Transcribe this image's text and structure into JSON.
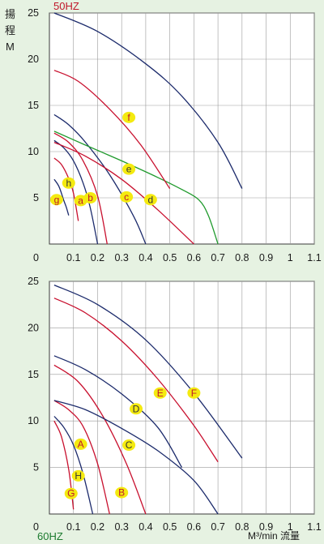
{
  "labels": {
    "y_char1": "揚",
    "y_char2": "程",
    "y_unit": "M",
    "x_label": "M³/min 流量",
    "origin": "0"
  },
  "colors": {
    "navy": "#1b2a6b",
    "red": "#c8102e",
    "green": "#1f9a2c",
    "badge": "#f4ea10",
    "badge_text_red": "#c0182a",
    "badge_text_dark": "#333333",
    "grid": "#9a9a9a",
    "plot_bg": "#ffffff"
  },
  "chart_data": [
    {
      "type": "line",
      "title": "50HZ",
      "xlim": [
        0,
        1.1
      ],
      "ylim": [
        0,
        25
      ],
      "xticks": [
        "0.1",
        "0.2",
        "0.3",
        "0.4",
        "0.5",
        "0.6",
        "0.7",
        "0.8",
        "0.9",
        "1",
        "1.1"
      ],
      "yticks": [
        "5",
        "10",
        "15",
        "20",
        "25"
      ],
      "grid": true,
      "series": [
        {
          "name": "g",
          "color": "navy",
          "x": [
            0.02,
            0.04,
            0.06,
            0.07,
            0.08
          ],
          "y": [
            7,
            6.2,
            4.7,
            4,
            3.1
          ],
          "badge": [
            0.03,
            4.8
          ],
          "badge_text": "red"
        },
        {
          "name": "h",
          "color": "red",
          "x": [
            0.02,
            0.05,
            0.08,
            0.1,
            0.12
          ],
          "y": [
            9.3,
            8.6,
            7.1,
            5.5,
            2.5
          ],
          "badge": [
            0.08,
            6.6
          ],
          "badge_text": "dark"
        },
        {
          "name": "a",
          "color": "navy",
          "x": [
            0.02,
            0.06,
            0.1,
            0.14,
            0.17,
            0.2
          ],
          "y": [
            11.2,
            10.4,
            9,
            6.6,
            3.9,
            0
          ],
          "badge": [
            0.13,
            4.7
          ],
          "badge_text": "red"
        },
        {
          "name": "b",
          "color": "red",
          "x": [
            0.02,
            0.08,
            0.14,
            0.2,
            0.24
          ],
          "y": [
            12,
            11,
            9,
            5.2,
            0
          ],
          "badge": [
            0.17,
            5
          ],
          "badge_text": "red"
        },
        {
          "name": "c",
          "color": "navy",
          "x": [
            0.02,
            0.08,
            0.15,
            0.25,
            0.35,
            0.4
          ],
          "y": [
            14,
            12.9,
            11,
            7.5,
            3,
            0
          ],
          "badge": [
            0.32,
            5.1
          ],
          "badge_text": "red"
        },
        {
          "name": "d",
          "color": "red",
          "x": [
            0.02,
            0.15,
            0.3,
            0.45,
            0.6
          ],
          "y": [
            11,
            9.5,
            7,
            3.7,
            0
          ],
          "badge": [
            0.42,
            4.8
          ],
          "badge_text": "dark"
        },
        {
          "name": "e",
          "color": "green",
          "x": [
            0.02,
            0.15,
            0.3,
            0.45,
            0.55,
            0.62,
            0.66,
            0.7
          ],
          "y": [
            12.2,
            10.7,
            9,
            7.2,
            5.9,
            4.8,
            3.1,
            0
          ],
          "badge": [
            0.33,
            8.1
          ],
          "badge_text": "dark"
        },
        {
          "name": "f",
          "color": "red",
          "x": [
            0.02,
            0.12,
            0.25,
            0.38,
            0.5
          ],
          "y": [
            18.8,
            17.6,
            14.6,
            10.7,
            6
          ],
          "badge": [
            0.33,
            13.7
          ],
          "badge_text": "red"
        },
        {
          "name": "",
          "color": "navy",
          "x": [
            0.02,
            0.2,
            0.4,
            0.55,
            0.7,
            0.8
          ],
          "y": [
            25,
            23,
            19.5,
            16,
            11,
            6
          ],
          "badge": [
            0.6,
            14.1
          ],
          "badge_text": "dark"
        }
      ]
    },
    {
      "type": "line",
      "title": "60HZ",
      "xlim": [
        0,
        1.1
      ],
      "ylim": [
        0,
        25
      ],
      "xticks": [
        "0.1",
        "0.2",
        "0.3",
        "0.4",
        "0.5",
        "0.6",
        "0.7",
        "0.8",
        "0.9",
        "1",
        "1.1"
      ],
      "yticks": [
        "5",
        "10",
        "15",
        "20",
        "25"
      ],
      "grid": true,
      "series": [
        {
          "name": "G",
          "color": "red",
          "x": [
            0.02,
            0.05,
            0.08,
            0.1
          ],
          "y": [
            10,
            8.3,
            4.8,
            0.5
          ],
          "badge": [
            0.09,
            2.2
          ],
          "badge_text": "red"
        },
        {
          "name": "H",
          "color": "navy",
          "x": [
            0.02,
            0.06,
            0.1,
            0.14,
            0.18
          ],
          "y": [
            10.5,
            9.3,
            7.4,
            4.3,
            0
          ],
          "badge": [
            0.12,
            4.1
          ],
          "badge_text": "dark"
        },
        {
          "name": "A",
          "color": "red",
          "x": [
            0.02,
            0.08,
            0.14,
            0.2,
            0.25
          ],
          "y": [
            12.2,
            11.2,
            9.4,
            5.4,
            0
          ],
          "badge": [
            0.13,
            7.5
          ],
          "badge_text": "red"
        },
        {
          "name": "B",
          "color": "red",
          "x": [
            0.02,
            0.12,
            0.22,
            0.32,
            0.4
          ],
          "y": [
            16,
            14.2,
            10.6,
            5.4,
            0
          ],
          "badge": [
            0.3,
            2.3
          ],
          "badge_text": "red"
        },
        {
          "name": "C",
          "color": "navy",
          "x": [
            0.02,
            0.15,
            0.3,
            0.45,
            0.6,
            0.7
          ],
          "y": [
            12.2,
            11.2,
            9.2,
            6.8,
            3.6,
            0
          ],
          "badge": [
            0.33,
            7.4
          ],
          "badge_text": "dark"
        },
        {
          "name": "D",
          "color": "navy",
          "x": [
            0.02,
            0.15,
            0.3,
            0.45,
            0.55
          ],
          "y": [
            17,
            15.5,
            12.9,
            9.3,
            5
          ],
          "badge": [
            0.36,
            11.3
          ],
          "badge_text": "dark"
        },
        {
          "name": "E",
          "color": "red",
          "x": [
            0.02,
            0.15,
            0.3,
            0.45,
            0.6,
            0.7
          ],
          "y": [
            23.2,
            21.6,
            18.6,
            14.5,
            9.5,
            5.6
          ],
          "badge": [
            0.46,
            13
          ],
          "badge_text": "red"
        },
        {
          "name": "F",
          "color": "navy",
          "x": [
            0.02,
            0.2,
            0.4,
            0.6,
            0.8
          ],
          "y": [
            24.6,
            22.5,
            18.7,
            13,
            6
          ],
          "badge": [
            0.6,
            13
          ],
          "badge_text": "red"
        }
      ]
    }
  ]
}
